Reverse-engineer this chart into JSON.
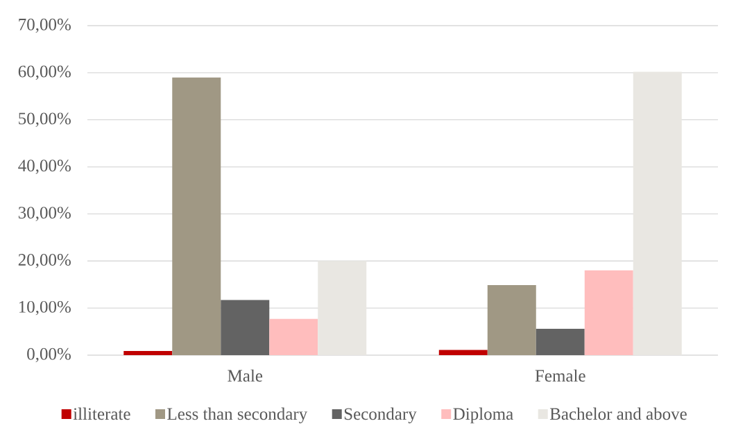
{
  "chart_data": {
    "type": "bar",
    "categories": [
      "Male",
      "Female"
    ],
    "series": [
      {
        "name": "illiterate",
        "color": "#c00000",
        "values": [
          0.9,
          1.1
        ]
      },
      {
        "name": "Less than secondary",
        "color": "#a09884",
        "values": [
          59.0,
          14.9
        ]
      },
      {
        "name": "Secondary",
        "color": "#636363",
        "values": [
          11.7,
          5.6
        ]
      },
      {
        "name": "Diploma",
        "color": "#ffbdbd",
        "values": [
          7.7,
          18.0
        ]
      },
      {
        "name": "Bachelor and above",
        "color": "#e9e7e2",
        "values": [
          20.0,
          60.2
        ]
      }
    ],
    "ylim": [
      0,
      70
    ],
    "yticks": [
      {
        "value": 0,
        "label": "0,00%"
      },
      {
        "value": 10,
        "label": "10,00%"
      },
      {
        "value": 20,
        "label": "20,00%"
      },
      {
        "value": 30,
        "label": "30,00%"
      },
      {
        "value": 40,
        "label": "40,00%"
      },
      {
        "value": 50,
        "label": "50,00%"
      },
      {
        "value": 60,
        "label": "60,00%"
      },
      {
        "value": 70,
        "label": "70,00%"
      }
    ],
    "grid": "y",
    "legend": "bottom"
  }
}
